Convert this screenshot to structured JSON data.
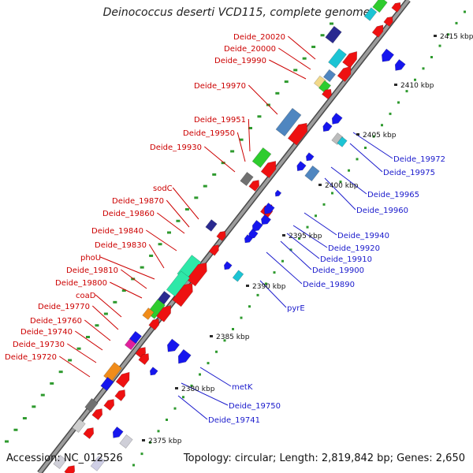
{
  "title": "Deinococcus deserti VCD115, complete genome",
  "footer": {
    "accession": "Accession: NC_012526",
    "summary": "Topology: circular; Length: 2,819,842 bp; Genes: 2,650"
  },
  "colors": {
    "backbone": "#8a8a8a",
    "tick_dot": "#2e9a2e",
    "plus_label": "#cc0000",
    "minus_label": "#1a1acc",
    "gene_red": "#ee1111",
    "gene_blue": "#1616ee",
    "gene_green": "#2ecc2e",
    "gene_steel": "#4f86c0",
    "gene_cyan": "#1cc4d4",
    "gene_navy": "#2a2a90",
    "gene_gray": "#707070",
    "gene_orange": "#f08c1a",
    "gene_magenta": "#e0209c",
    "gene_seafoam": "#2ee8a8"
  },
  "scale_labels": [
    "2375 kbp",
    "2380 kbp",
    "2385 kbp",
    "2390 kbp",
    "2395 kbp",
    "2400 kbp",
    "2405 kbp",
    "2410 kbp",
    "2415 kbp"
  ],
  "labels_plus": [
    "Deide_20020",
    "Deide_20000",
    "Deide_19990",
    "Deide_19970",
    "Deide_19951",
    "Deide_19950",
    "Deide_19930",
    "sodC",
    "Deide_19870",
    "Deide_19860",
    "Deide_19840",
    "Deide_19830",
    "phoU",
    "Deide_19810",
    "Deide_19800",
    "coaD",
    "Deide_19770",
    "Deide_19760",
    "Deide_19740",
    "Deide_19730",
    "Deide_19720"
  ],
  "labels_minus": [
    "Deide_19972",
    "Deide_19975",
    "Deide_19965",
    "Deide_19960",
    "Deide_19940",
    "Deide_19920",
    "Deide_19910",
    "Deide_19900",
    "Deide_19890",
    "pyrE",
    "metK",
    "Deide_19750",
    "Deide_19741"
  ]
}
